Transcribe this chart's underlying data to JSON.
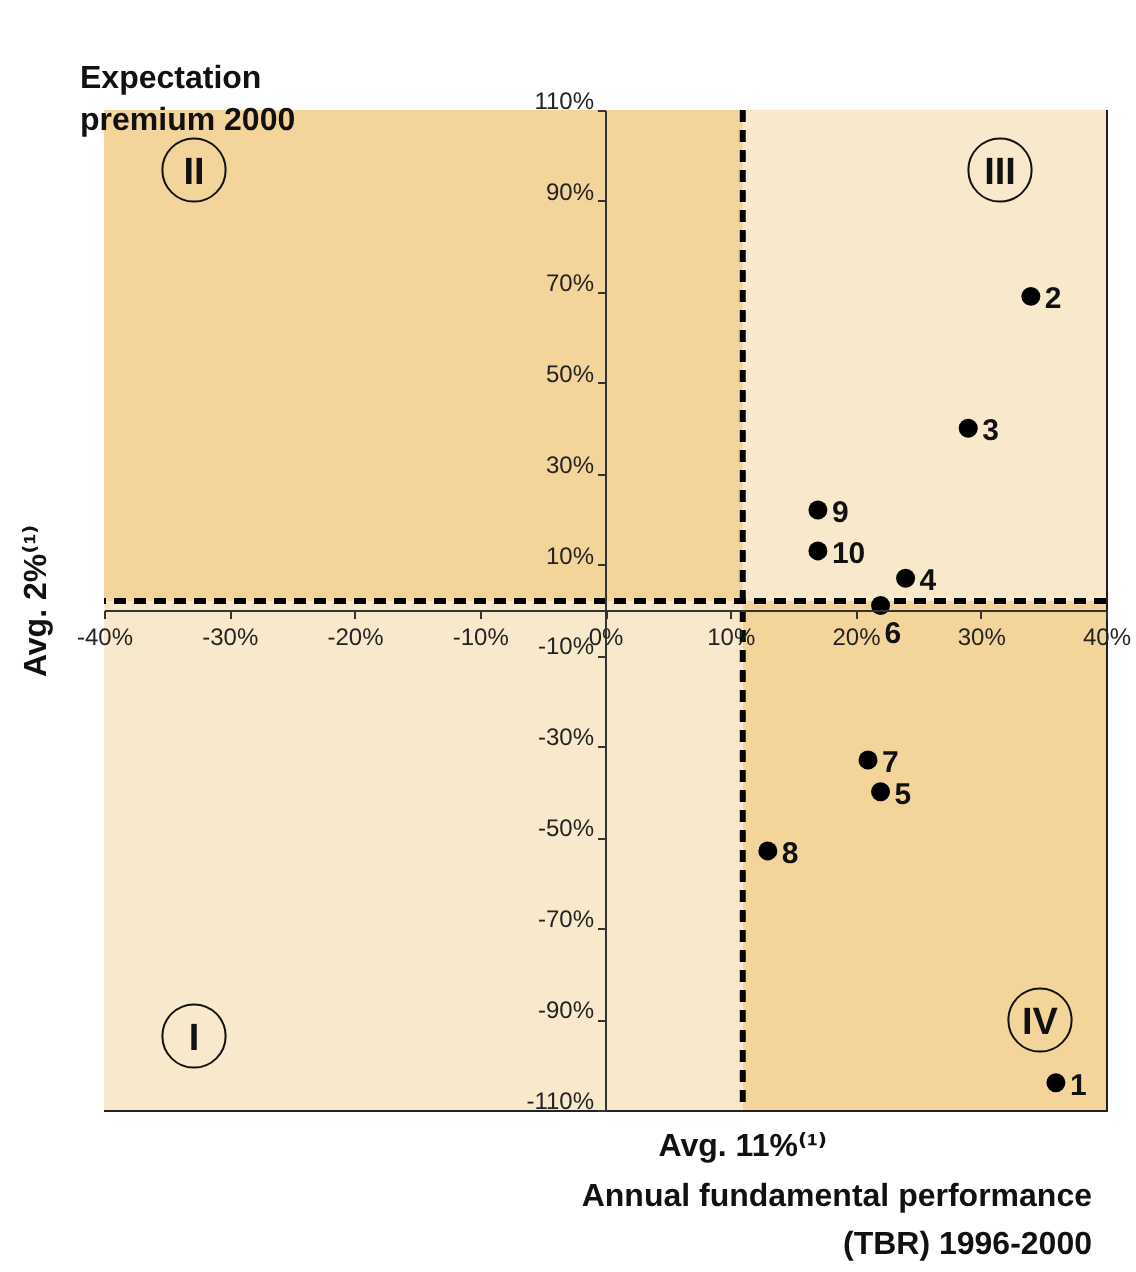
{
  "chart_data": {
    "type": "scatter",
    "xlabel": "Annual fundamental performance (TBR) 1996-2000",
    "x": [
      36,
      34,
      29,
      24,
      22,
      22,
      21,
      13,
      17,
      17
    ],
    "series": [
      {
        "color": "#000000",
        "values": [
          -104,
          69,
          40,
          7,
          1,
          -40,
          -33,
          -53,
          22,
          13
        ]
      }
    ],
    "xlim": [
      -40,
      40
    ],
    "ylim": [
      -110,
      110
    ],
    "xticks": [
      {
        "value": -40,
        "label": "-40%"
      },
      {
        "value": -30,
        "label": "-30%"
      },
      {
        "value": -20,
        "label": "-20%"
      },
      {
        "value": -10,
        "label": "-10%"
      },
      {
        "value": 0,
        "label": "0%"
      },
      {
        "value": 10,
        "label": "10%"
      },
      {
        "value": 20,
        "label": "20%"
      },
      {
        "value": 30,
        "label": "30%"
      },
      {
        "value": 40,
        "label": "40%"
      }
    ],
    "yticks": [
      {
        "value": -110,
        "label": "-110%"
      },
      {
        "value": -90,
        "label": "-90%"
      },
      {
        "value": -70,
        "label": "-70%"
      },
      {
        "value": -50,
        "label": "-50%"
      },
      {
        "value": -30,
        "label": "-30%"
      },
      {
        "value": -10,
        "label": "-10%"
      },
      {
        "value": 10,
        "label": "10%"
      },
      {
        "value": 30,
        "label": "30%"
      },
      {
        "value": 50,
        "label": "50%"
      },
      {
        "value": 70,
        "label": "70%"
      },
      {
        "value": 90,
        "label": "90%"
      },
      {
        "value": 110,
        "label": "110%"
      }
    ],
    "ref_lines": [
      {
        "axis": "x",
        "value": 11,
        "label": "Avg. 11%⁽¹⁾",
        "line_style": "dashed"
      },
      {
        "axis": "y",
        "value": 2,
        "label": "Avg. 2%⁽¹⁾",
        "line_style": "dashed"
      }
    ],
    "annotations": [
      "Expectation premium 2000",
      "I",
      "II",
      "III",
      "IV",
      {
        "text": "1",
        "x": 36,
        "y": -104
      },
      {
        "text": "2",
        "x": 34,
        "y": 69
      },
      {
        "text": "3",
        "x": 29,
        "y": 40
      },
      {
        "text": "4",
        "x": 24,
        "y": 7
      },
      {
        "text": "6",
        "x": 22,
        "y": 1
      },
      {
        "text": "5",
        "x": 22,
        "y": -40
      },
      {
        "text": "7",
        "x": 21,
        "y": -33
      },
      {
        "text": "8",
        "x": 13,
        "y": -53
      },
      {
        "text": "9",
        "x": 17,
        "y": 22
      },
      {
        "text": "10",
        "x": 17,
        "y": 13
      }
    ],
    "marker": "circle"
  }
}
